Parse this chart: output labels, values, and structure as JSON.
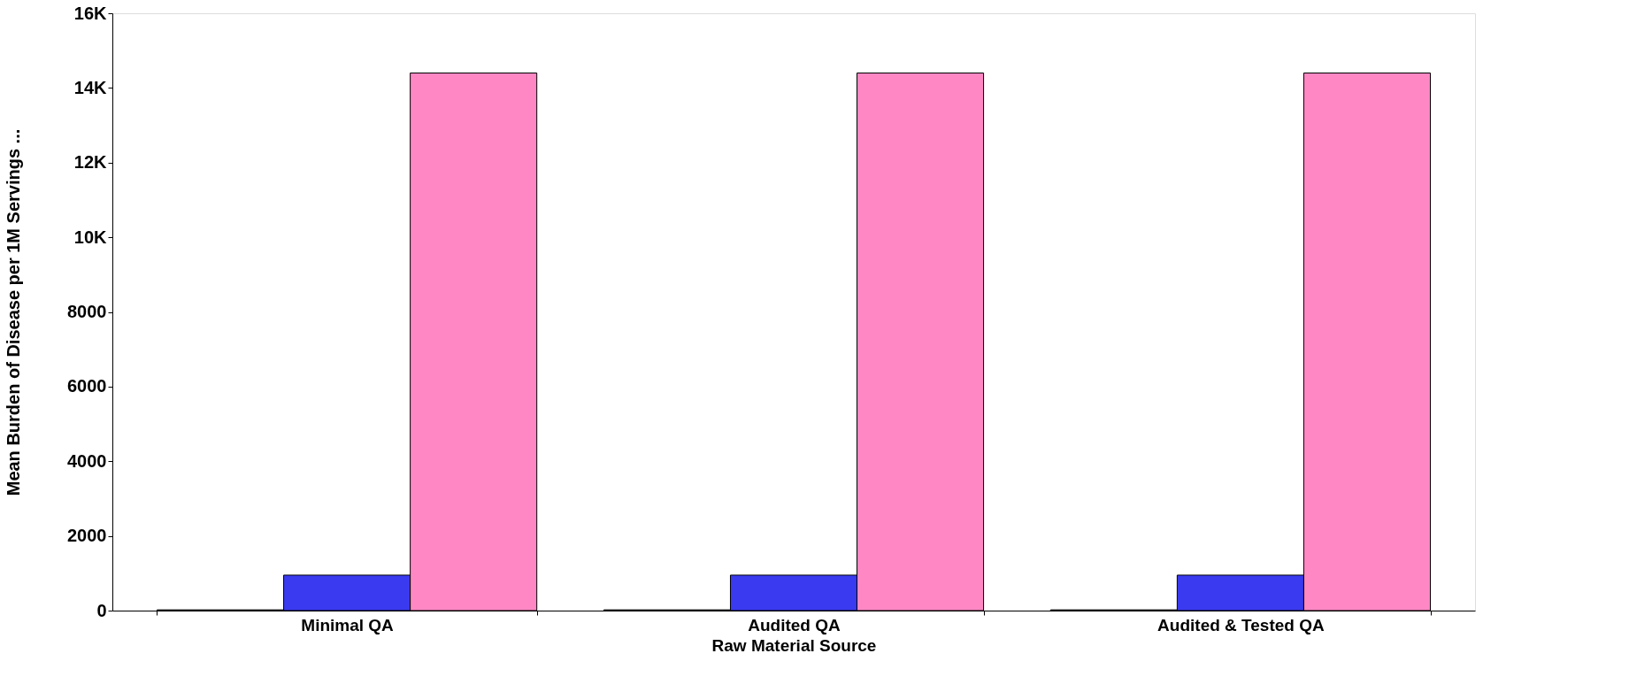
{
  "chart_data": {
    "type": "bar",
    "xlabel": "Raw Material Source",
    "ylabel": "Mean Burden of Disease per 1M Servings ...",
    "categories": [
      "Minimal QA",
      "Audited QA",
      "Audited & Tested QA"
    ],
    "series": [
      {
        "color": "#000000",
        "values": [
          20,
          20,
          20
        ]
      },
      {
        "color": "#3a3af0",
        "values": [
          950,
          950,
          950
        ]
      },
      {
        "color": "#ff88c4",
        "values": [
          14400,
          14400,
          14400
        ]
      }
    ],
    "ylim": [
      0,
      16000
    ],
    "yticks": [
      0,
      2000,
      4000,
      6000,
      8000,
      {
        "value": 10000,
        "label": "10K"
      },
      {
        "value": 12000,
        "label": "12K"
      },
      {
        "value": 14000,
        "label": "14K"
      },
      {
        "value": 16000,
        "label": "16K"
      }
    ],
    "legend": false
  }
}
